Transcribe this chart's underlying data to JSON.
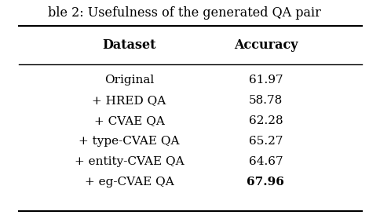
{
  "title": "ble 2: Usefulness of the generated QA pair",
  "columns": [
    "Dataset",
    "Accuracy"
  ],
  "rows": [
    [
      "Original",
      "61.97"
    ],
    [
      "+ HRED QA",
      "58.78"
    ],
    [
      "+ CVAE QA",
      "62.28"
    ],
    [
      "+ type-CVAE QA",
      "65.27"
    ],
    [
      "+ entity-CVAE QA",
      "64.67"
    ],
    [
      "+ eg-CVAE QA",
      "67.96"
    ]
  ],
  "bold_last_accuracy": true,
  "background_color": "#ffffff",
  "text_color": "#000000",
  "font_size": 11,
  "header_font_size": 11.5,
  "title_font_size": 11.5
}
